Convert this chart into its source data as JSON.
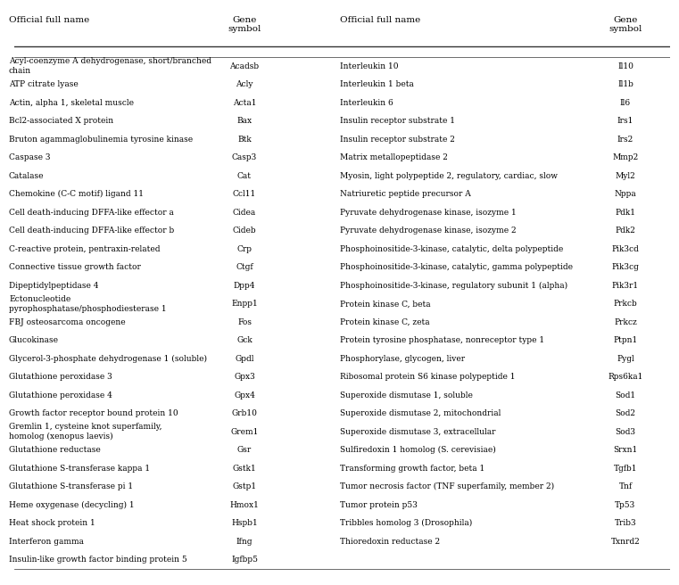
{
  "col_headers_left": [
    "Official full name",
    "Gene\nsymbol"
  ],
  "col_headers_right": [
    "Official full name",
    "Gene\nsymbol"
  ],
  "left_col_full": [
    "Acyl-coenzyme A dehydrogenase, short/branched\nchain",
    "ATP citrate lyase",
    "Actin, alpha 1, skeletal muscle",
    "Bcl2-associated X protein",
    "Bruton agammaglobulinemia tyrosine kinase",
    "Caspase 3",
    "Catalase",
    "Chemokine (C-C motif) ligand 11",
    "Cell death-inducing DFFA-like effector a",
    "Cell death-inducing DFFA-like effector b",
    "C-reactive protein, pentraxin-related",
    "Connective tissue growth factor",
    "Dipeptidylpeptidase 4",
    "Ectonucleotide\npyrophosphatase/phosphodiesterase 1",
    "FBJ osteosarcoma oncogene",
    "Glucokinase",
    "Glycerol-3-phosphate dehydrogenase 1 (soluble)",
    "Glutathione peroxidase 3",
    "Glutathione peroxidase 4",
    "Growth factor receptor bound protein 10",
    "Gremlin 1, cysteine knot superfamily,\nhomolog (xenopus laevis)",
    "Glutathione reductase",
    "Glutathione S-transferase kappa 1",
    "Glutathione S-transferase pi 1",
    "Heme oxygenase (decycling) 1",
    "Heat shock protein 1",
    "Interferon gamma",
    "Insulin-like growth factor binding protein 5"
  ],
  "left_col_symbol": [
    "Acadsb",
    "Acly",
    "Acta1",
    "Bax",
    "Btk",
    "Casp3",
    "Cat",
    "Ccl11",
    "Cidea",
    "Cideb",
    "Crp",
    "Ctgf",
    "Dpp4",
    "Enpp1",
    "Fos",
    "Gck",
    "Gpdl",
    "Gpx3",
    "Gpx4",
    "Grb10",
    "Grem1",
    "Gsr",
    "Gstk1",
    "Gstp1",
    "Hmox1",
    "Hspb1",
    "Ifng",
    "Igfbp5"
  ],
  "right_col_full": [
    "Interleukin 10",
    "Interleukin 1 beta",
    "Interleukin 6",
    "Insulin receptor substrate 1",
    "Insulin receptor substrate 2",
    "Matrix metallopeptidase 2",
    "Myosin, light polypeptide 2, regulatory, cardiac, slow",
    "Natriuretic peptide precursor A",
    "Pyruvate dehydrogenase kinase, isozyme 1",
    "Pyruvate dehydrogenase kinase, isozyme 2",
    "Phosphoinositide-3-kinase, catalytic, delta polypeptide",
    "Phosphoinositide-3-kinase, catalytic, gamma polypeptide",
    "Phosphoinositide-3-kinase, regulatory subunit 1 (alpha)",
    "Protein kinase C, beta",
    "Protein kinase C, zeta",
    "Protein tyrosine phosphatase, nonreceptor type 1",
    "Phosphorylase, glycogen, liver",
    "Ribosomal protein S6 kinase polypeptide 1",
    "Superoxide dismutase 1, soluble",
    "Superoxide dismutase 2, mitochondrial",
    "Superoxide dismutase 3, extracellular",
    "Sulfiredoxin 1 homolog (S. cerevisiae)",
    "Transforming growth factor, beta 1",
    "Tumor necrosis factor (TNF superfamily, member 2)",
    "Tumor protein p53",
    "Tribbles homolog 3 (Drosophila)",
    "Thioredoxin reductase 2",
    "",
    ""
  ],
  "right_col_symbol": [
    "Il10",
    "Il1b",
    "Il6",
    "Irs1",
    "Irs2",
    "Mmp2",
    "Myl2",
    "Nppa",
    "Pdk1",
    "Pdk2",
    "Pik3cd",
    "Pik3cg",
    "Pik3r1",
    "Prkcb",
    "Prkcz",
    "Ptpn1",
    "Pygl",
    "Rps6ka1",
    "Sod1",
    "Sod2",
    "Sod3",
    "Srxn1",
    "Tgfb1",
    "Tnf",
    "Tp53",
    "Trib3",
    "Txnrd2",
    "",
    ""
  ],
  "bg_color": "#ffffff",
  "text_color": "#000000",
  "font_size": 6.5,
  "header_font_size": 7.5
}
